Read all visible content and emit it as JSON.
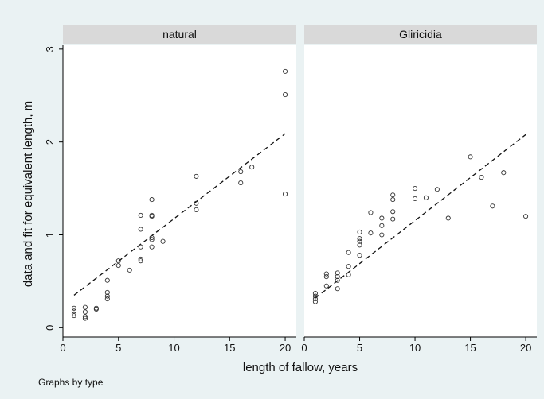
{
  "chart_data": {
    "type": "scatter",
    "title": "",
    "xlabel": "length of fallow, years",
    "ylabel": "data and fit for equivalent length, m",
    "xlim": [
      0,
      21
    ],
    "ylim": [
      -0.1,
      3.05
    ],
    "x_ticks": [
      0,
      5,
      10,
      15,
      20
    ],
    "y_ticks": [
      0,
      1,
      2,
      3
    ],
    "grid": false,
    "note": "Graphs by type",
    "panels": [
      {
        "name": "natural",
        "points": [
          [
            1,
            0.13
          ],
          [
            1,
            0.15
          ],
          [
            1,
            0.18
          ],
          [
            1,
            0.21
          ],
          [
            2,
            0.1
          ],
          [
            2,
            0.12
          ],
          [
            2,
            0.17
          ],
          [
            2,
            0.22
          ],
          [
            3,
            0.2
          ],
          [
            3,
            0.21
          ],
          [
            4,
            0.31
          ],
          [
            4,
            0.34
          ],
          [
            4,
            0.38
          ],
          [
            4,
            0.51
          ],
          [
            5,
            0.67
          ],
          [
            5,
            0.72
          ],
          [
            6,
            0.62
          ],
          [
            7,
            0.72
          ],
          [
            7,
            0.74
          ],
          [
            7,
            0.87
          ],
          [
            7,
            1.06
          ],
          [
            7,
            1.21
          ],
          [
            8,
            0.87
          ],
          [
            8,
            0.95
          ],
          [
            8,
            0.97
          ],
          [
            8,
            1.2
          ],
          [
            8,
            1.21
          ],
          [
            8,
            1.38
          ],
          [
            9,
            0.93
          ],
          [
            12,
            1.27
          ],
          [
            12,
            1.34
          ],
          [
            12,
            1.63
          ],
          [
            16,
            1.56
          ],
          [
            16,
            1.68
          ],
          [
            17,
            1.73
          ],
          [
            20,
            1.44
          ],
          [
            20,
            2.51
          ],
          [
            20,
            2.76
          ]
        ],
        "fit": {
          "x": [
            1,
            20
          ],
          "y": [
            0.35,
            2.09
          ]
        }
      },
      {
        "name": "Gliricidia",
        "points": [
          [
            1,
            0.28
          ],
          [
            1,
            0.31
          ],
          [
            1,
            0.34
          ],
          [
            1,
            0.37
          ],
          [
            2,
            0.45
          ],
          [
            2,
            0.55
          ],
          [
            2,
            0.58
          ],
          [
            3,
            0.42
          ],
          [
            3,
            0.51
          ],
          [
            3,
            0.55
          ],
          [
            3,
            0.59
          ],
          [
            4,
            0.57
          ],
          [
            4,
            0.66
          ],
          [
            4,
            0.81
          ],
          [
            5,
            0.78
          ],
          [
            5,
            0.89
          ],
          [
            5,
            0.93
          ],
          [
            5,
            0.96
          ],
          [
            5,
            1.03
          ],
          [
            6,
            1.02
          ],
          [
            6,
            1.24
          ],
          [
            7,
            1.0
          ],
          [
            7,
            1.1
          ],
          [
            7,
            1.18
          ],
          [
            8,
            1.17
          ],
          [
            8,
            1.25
          ],
          [
            8,
            1.38
          ],
          [
            8,
            1.43
          ],
          [
            10,
            1.39
          ],
          [
            10,
            1.5
          ],
          [
            11,
            1.4
          ],
          [
            12,
            1.49
          ],
          [
            13,
            1.18
          ],
          [
            15,
            1.84
          ],
          [
            16,
            1.62
          ],
          [
            17,
            1.31
          ],
          [
            18,
            1.67
          ],
          [
            20,
            1.2
          ]
        ],
        "fit": {
          "x": [
            1,
            20
          ],
          "y": [
            0.32,
            2.08
          ]
        }
      }
    ]
  }
}
